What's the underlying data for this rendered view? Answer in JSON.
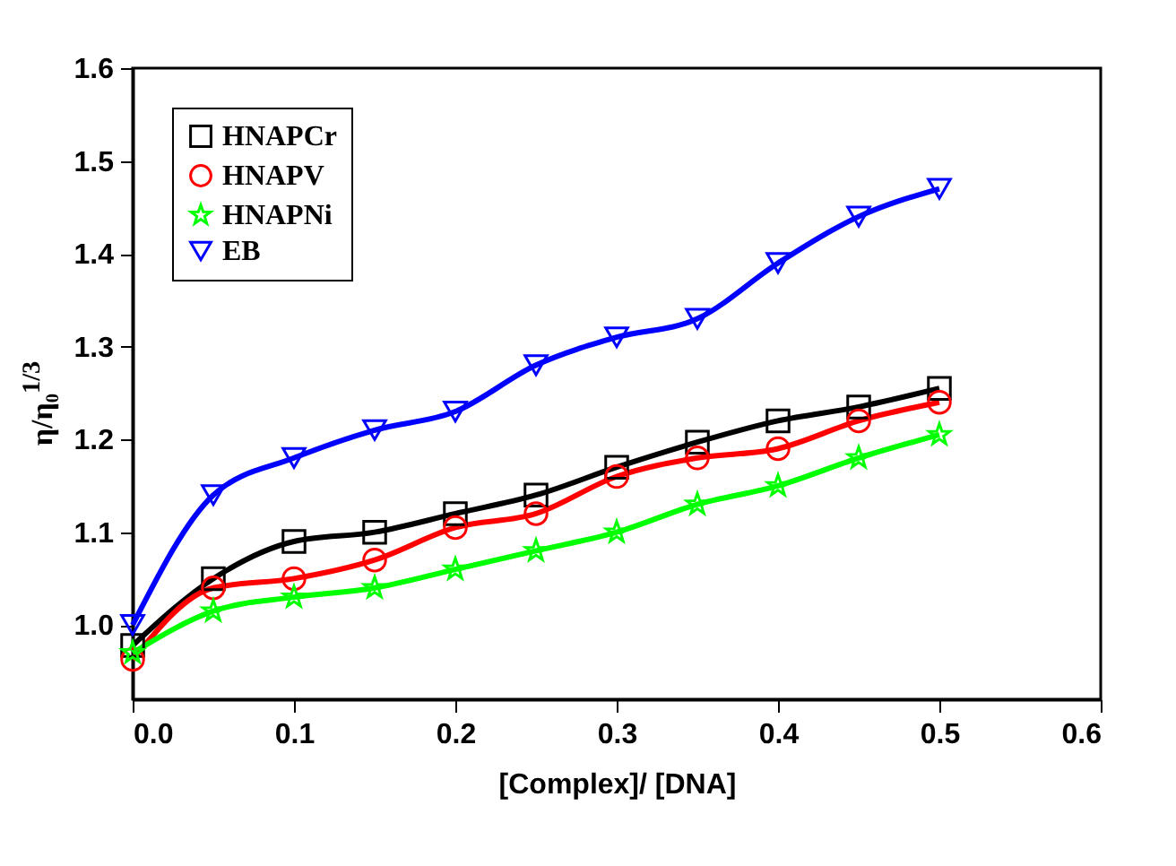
{
  "chart_data": {
    "type": "line",
    "xlabel": "[Complex]/ [DNA]",
    "ylabel": "η/η₀$^{1/3}$",
    "x": [
      0,
      0.05,
      0.1,
      0.15,
      0.2,
      0.25,
      0.3,
      0.35,
      0.4,
      0.45,
      0.5
    ],
    "series": [
      {
        "name": "HNAPCr",
        "color": "#000000",
        "marker": "square",
        "values": [
          0.978,
          1.05,
          1.09,
          1.1,
          1.12,
          1.14,
          1.17,
          1.197,
          1.22,
          1.235,
          1.255
        ]
      },
      {
        "name": "HNAPV",
        "color": "#ff0000",
        "marker": "circle",
        "values": [
          0.963,
          1.04,
          1.05,
          1.07,
          1.105,
          1.12,
          1.16,
          1.18,
          1.19,
          1.22,
          1.24
        ]
      },
      {
        "name": "HNAPNi",
        "color": "#00ff00",
        "marker": "star",
        "values": [
          0.97,
          1.015,
          1.03,
          1.04,
          1.06,
          1.08,
          1.1,
          1.13,
          1.15,
          1.18,
          1.205
        ]
      },
      {
        "name": "EB",
        "color": "#0000ff",
        "marker": "triangle",
        "values": [
          1.0,
          1.14,
          1.18,
          1.21,
          1.23,
          1.28,
          1.31,
          1.33,
          1.39,
          1.44,
          1.47
        ]
      }
    ],
    "xlim": [
      0,
      0.6
    ],
    "xticks": [
      {
        "value": 0,
        "label": "0.0"
      },
      0.1,
      0.2,
      0.3,
      0.4,
      0.5,
      0.6
    ],
    "ylim": [
      0.92,
      1.6
    ],
    "yticks": [
      {
        "value": 1,
        "label": "1.0"
      },
      1.1,
      1.2,
      1.3,
      1.4,
      1.5,
      1.6
    ],
    "grid": false,
    "legend": "top left",
    "line_style": "solid"
  }
}
